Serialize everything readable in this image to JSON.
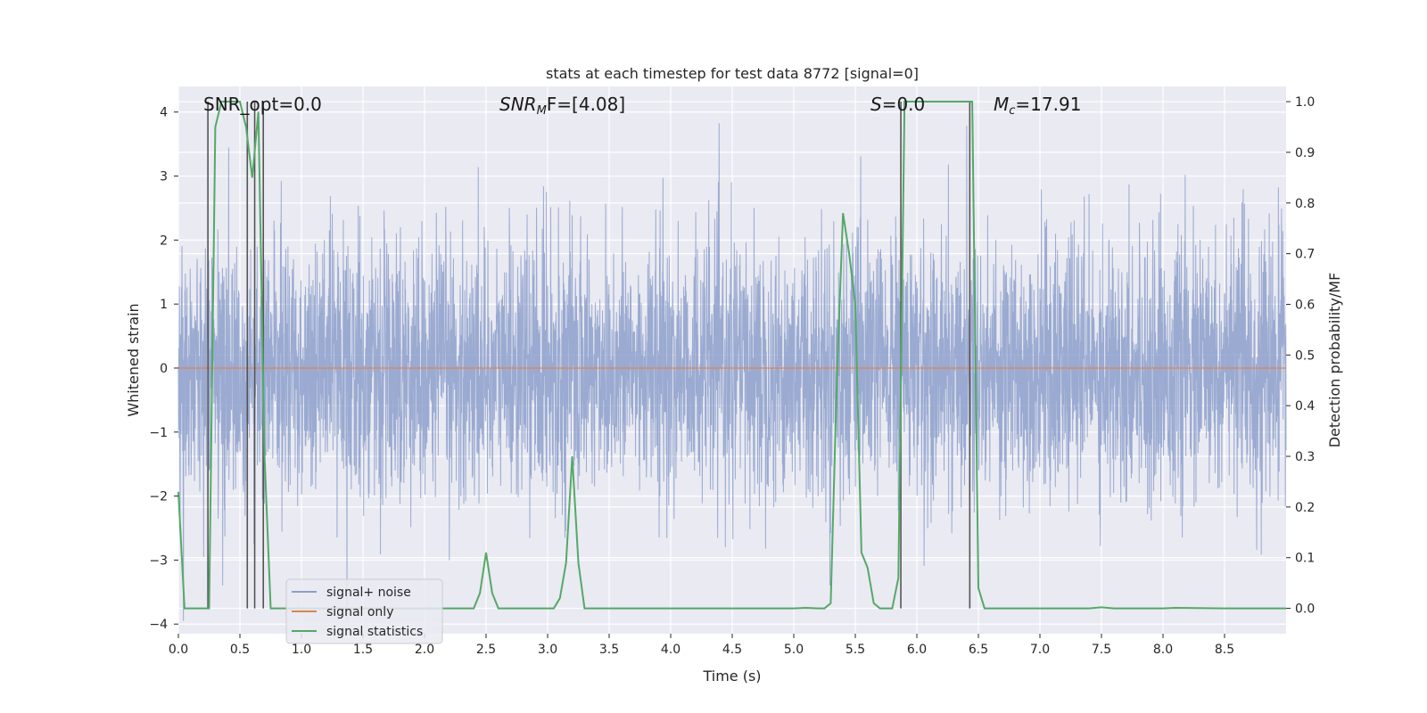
{
  "chart_data": {
    "type": "line",
    "title": "stats at each timestep for test data 8772 [signal=0]",
    "xlabel": "Time (s)",
    "ylabel": "Whitened strain",
    "ylabel_right": "Detection probability/MF",
    "xlim": [
      0.0,
      9.0
    ],
    "ylim": [
      -4.15,
      4.4
    ],
    "ylim_right": [
      -0.05,
      1.03
    ],
    "xticks": [
      "0.0",
      "0.5",
      "1.0",
      "1.5",
      "2.0",
      "2.5",
      "3.0",
      "3.5",
      "4.0",
      "4.5",
      "5.0",
      "5.5",
      "6.0",
      "6.5",
      "7.0",
      "7.5",
      "8.0",
      "8.5"
    ],
    "yticks": [
      "4",
      "3",
      "2",
      "1",
      "0",
      "−1",
      "−2",
      "−3",
      "−4"
    ],
    "yticks_right": [
      "1.0",
      "0.9",
      "0.8",
      "0.7",
      "0.6",
      "0.5",
      "0.4",
      "0.3",
      "0.2",
      "0.1",
      "0.0"
    ],
    "grid": true,
    "legend": {
      "position": "lower-left",
      "entries": [
        "signal+ noise",
        "signal only",
        "signal statistics"
      ]
    },
    "colors": {
      "noise": "#8c9fcb",
      "signal_only": "#dd8452",
      "statistics": "#55a868",
      "marker": "#555555",
      "background": "#eaeaf2"
    },
    "annotations": {
      "snr_opt": "SNR_opt=0.0",
      "snr_mf_base": "SNR",
      "snr_mf_sub": "M",
      "snr_mf_tail": "F=[4.08]",
      "s_label": "S",
      "s_value": "=0.0",
      "mc_base": "M",
      "mc_sub": "c",
      "mc_value": "=17.91"
    },
    "series": [
      {
        "name": "signal+ noise",
        "description": "whitened noisy strain, approx gaussian amplitude ~1, peaks to about ±4",
        "x_range": [
          0.0,
          9.0
        ],
        "std": 1.0
      },
      {
        "name": "signal only",
        "x": [
          0.0,
          9.0
        ],
        "y": [
          0.0,
          0.0
        ]
      },
      {
        "name": "signal statistics",
        "axis": "right",
        "x": [
          0.0,
          0.05,
          0.1,
          0.15,
          0.2,
          0.25,
          0.3,
          0.35,
          0.4,
          0.45,
          0.5,
          0.55,
          0.6,
          0.65,
          0.7,
          0.75,
          0.8,
          0.85,
          0.9,
          1.0,
          1.5,
          2.0,
          2.4,
          2.45,
          2.5,
          2.55,
          2.6,
          3.05,
          3.1,
          3.15,
          3.2,
          3.25,
          3.3,
          3.5,
          4.5,
          5.0,
          5.1,
          5.2,
          5.25,
          5.3,
          5.35,
          5.4,
          5.45,
          5.5,
          5.55,
          5.6,
          5.65,
          5.7,
          5.75,
          5.8,
          5.85,
          5.9,
          5.95,
          6.0,
          6.3,
          6.4,
          6.45,
          6.5,
          6.55,
          6.6,
          7.0,
          7.4,
          7.5,
          7.6,
          8.0,
          8.1,
          8.5,
          9.0
        ],
        "y": [
          0.23,
          0.0,
          0.0,
          0.0,
          0.0,
          0.0,
          0.95,
          1.0,
          1.0,
          1.0,
          1.0,
          0.95,
          0.85,
          0.98,
          0.3,
          0.0,
          0.0,
          0.0,
          0.0,
          0.0,
          0.0,
          0.0,
          0.0,
          0.03,
          0.11,
          0.03,
          0.0,
          0.0,
          0.02,
          0.09,
          0.3,
          0.09,
          0.0,
          0.0,
          0.0,
          0.0,
          0.001,
          0.0,
          0.0,
          0.01,
          0.45,
          0.78,
          0.7,
          0.6,
          0.11,
          0.08,
          0.01,
          0.0,
          0.0,
          0.0,
          0.06,
          1.0,
          1.0,
          1.0,
          1.0,
          1.0,
          1.0,
          0.04,
          0.0,
          0.0,
          0.0,
          0.0,
          0.002,
          0.0,
          0.0,
          0.001,
          0.0,
          0.0
        ]
      }
    ],
    "markers": {
      "description": "vertical dark markers at event boundaries",
      "x": [
        0.24,
        0.56,
        0.62,
        0.69,
        5.87,
        6.43
      ]
    }
  }
}
